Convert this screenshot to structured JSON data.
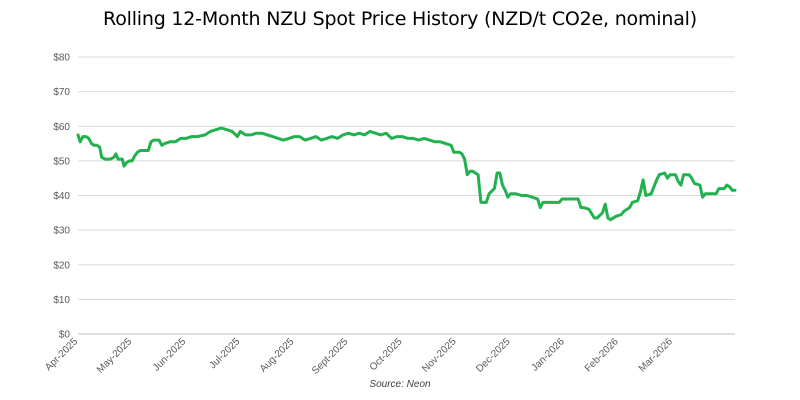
{
  "chart_data": {
    "type": "line",
    "title": "Rolling 12-Month NZU Spot Price History (NZD/t CO2e, nominal)",
    "source": "Source: Neon",
    "xlabel": "",
    "ylabel": "",
    "ylim": [
      0,
      80
    ],
    "yticks": [
      0,
      10,
      20,
      30,
      40,
      50,
      60,
      70,
      80
    ],
    "ytick_labels": [
      "$0",
      "$10",
      "$20",
      "$30",
      "$40",
      "$50",
      "$60",
      "$70",
      "$80"
    ],
    "xticks": [
      "Apr-2025",
      "May-2025",
      "Jun-2025",
      "Jul-2025",
      "Aug-2025",
      "Sept-2025",
      "Oct-2025",
      "Nov-2025",
      "Dec-2025",
      "Jan-2026",
      "Feb-2026",
      "Mar-2026"
    ],
    "xlim_months": [
      0,
      11.7
    ],
    "grid": true,
    "series": [
      {
        "name": "NZU Spot Price",
        "color": "#21b14e",
        "points": [
          [
            0.0,
            57.5
          ],
          [
            0.04,
            55.5
          ],
          [
            0.09,
            57.0
          ],
          [
            0.15,
            57.0
          ],
          [
            0.2,
            56.5
          ],
          [
            0.25,
            55.0
          ],
          [
            0.3,
            54.5
          ],
          [
            0.35,
            54.5
          ],
          [
            0.4,
            54.0
          ],
          [
            0.44,
            51.0
          ],
          [
            0.5,
            50.5
          ],
          [
            0.6,
            50.5
          ],
          [
            0.66,
            51.0
          ],
          [
            0.7,
            52.0
          ],
          [
            0.74,
            50.5
          ],
          [
            0.82,
            50.5
          ],
          [
            0.85,
            48.5
          ],
          [
            0.9,
            49.5
          ],
          [
            0.95,
            50.0
          ],
          [
            1.0,
            50.0
          ],
          [
            1.05,
            51.5
          ],
          [
            1.1,
            52.5
          ],
          [
            1.15,
            53.0
          ],
          [
            1.3,
            53.0
          ],
          [
            1.35,
            55.5
          ],
          [
            1.4,
            56.0
          ],
          [
            1.5,
            56.0
          ],
          [
            1.55,
            54.5
          ],
          [
            1.6,
            55.0
          ],
          [
            1.7,
            55.5
          ],
          [
            1.8,
            55.5
          ],
          [
            1.9,
            56.5
          ],
          [
            2.0,
            56.5
          ],
          [
            2.1,
            57.0
          ],
          [
            2.2,
            57.0
          ],
          [
            2.35,
            57.5
          ],
          [
            2.45,
            58.5
          ],
          [
            2.55,
            59.0
          ],
          [
            2.65,
            59.5
          ],
          [
            2.75,
            59.0
          ],
          [
            2.85,
            58.5
          ],
          [
            2.95,
            57.0
          ],
          [
            3.0,
            58.5
          ],
          [
            3.1,
            57.5
          ],
          [
            3.2,
            57.5
          ],
          [
            3.3,
            58.0
          ],
          [
            3.4,
            58.0
          ],
          [
            3.5,
            57.5
          ],
          [
            3.6,
            57.0
          ],
          [
            3.7,
            56.5
          ],
          [
            3.8,
            56.0
          ],
          [
            3.9,
            56.5
          ],
          [
            4.0,
            57.0
          ],
          [
            4.1,
            57.0
          ],
          [
            4.2,
            56.0
          ],
          [
            4.3,
            56.5
          ],
          [
            4.4,
            57.0
          ],
          [
            4.5,
            56.0
          ],
          [
            4.6,
            56.5
          ],
          [
            4.7,
            57.0
          ],
          [
            4.8,
            56.5
          ],
          [
            4.9,
            57.5
          ],
          [
            5.0,
            58.0
          ],
          [
            5.1,
            57.5
          ],
          [
            5.2,
            58.0
          ],
          [
            5.3,
            57.5
          ],
          [
            5.4,
            58.5
          ],
          [
            5.5,
            58.0
          ],
          [
            5.6,
            57.5
          ],
          [
            5.7,
            58.0
          ],
          [
            5.8,
            56.5
          ],
          [
            5.9,
            57.0
          ],
          [
            6.0,
            57.0
          ],
          [
            6.1,
            56.5
          ],
          [
            6.2,
            56.5
          ],
          [
            6.3,
            56.0
          ],
          [
            6.4,
            56.5
          ],
          [
            6.5,
            56.0
          ],
          [
            6.6,
            55.5
          ],
          [
            6.7,
            55.5
          ],
          [
            6.8,
            55.0
          ],
          [
            6.9,
            54.5
          ],
          [
            6.95,
            52.5
          ],
          [
            7.05,
            52.5
          ],
          [
            7.1,
            52.0
          ],
          [
            7.15,
            50.5
          ],
          [
            7.2,
            46.0
          ],
          [
            7.25,
            47.0
          ],
          [
            7.3,
            47.0
          ],
          [
            7.4,
            46.0
          ],
          [
            7.45,
            38.0
          ],
          [
            7.55,
            38.0
          ],
          [
            7.6,
            40.5
          ],
          [
            7.7,
            42.0
          ],
          [
            7.75,
            46.5
          ],
          [
            7.8,
            46.5
          ],
          [
            7.85,
            43.0
          ],
          [
            7.9,
            41.5
          ],
          [
            7.95,
            39.5
          ],
          [
            8.0,
            40.5
          ],
          [
            8.1,
            40.5
          ],
          [
            8.2,
            40.0
          ],
          [
            8.3,
            40.0
          ],
          [
            8.4,
            39.5
          ],
          [
            8.5,
            39.0
          ],
          [
            8.55,
            36.5
          ],
          [
            8.6,
            38.0
          ],
          [
            8.7,
            38.0
          ],
          [
            8.8,
            38.0
          ],
          [
            8.9,
            38.0
          ],
          [
            8.95,
            39.0
          ],
          [
            9.1,
            39.0
          ],
          [
            9.25,
            39.0
          ],
          [
            9.3,
            36.5
          ],
          [
            9.35,
            36.5
          ],
          [
            9.45,
            36.0
          ],
          [
            9.55,
            33.5
          ],
          [
            9.6,
            33.5
          ],
          [
            9.7,
            35.0
          ],
          [
            9.75,
            37.5
          ],
          [
            9.8,
            33.5
          ],
          [
            9.85,
            33.0
          ],
          [
            9.95,
            34.0
          ],
          [
            10.05,
            34.5
          ],
          [
            10.1,
            35.5
          ],
          [
            10.2,
            36.5
          ],
          [
            10.25,
            38.0
          ],
          [
            10.35,
            38.5
          ],
          [
            10.4,
            41.0
          ],
          [
            10.45,
            44.5
          ],
          [
            10.5,
            40.0
          ],
          [
            10.6,
            40.5
          ],
          [
            10.7,
            44.5
          ],
          [
            10.75,
            46.0
          ],
          [
            10.85,
            46.5
          ],
          [
            10.9,
            45.0
          ],
          [
            10.95,
            46.0
          ],
          [
            11.05,
            46.0
          ],
          [
            11.1,
            44.0
          ],
          [
            11.15,
            43.0
          ],
          [
            11.2,
            46.0
          ],
          [
            11.3,
            46.0
          ],
          [
            11.35,
            45.0
          ],
          [
            11.4,
            43.5
          ],
          [
            11.5,
            43.0
          ],
          [
            11.55,
            39.5
          ],
          [
            11.6,
            40.5
          ],
          [
            11.7,
            40.5
          ],
          [
            11.8,
            40.5
          ],
          [
            11.85,
            42.0
          ],
          [
            11.95,
            42.0
          ],
          [
            12.0,
            43.0
          ],
          [
            12.05,
            42.5
          ],
          [
            12.1,
            41.5
          ],
          [
            12.15,
            41.5
          ]
        ]
      }
    ]
  }
}
